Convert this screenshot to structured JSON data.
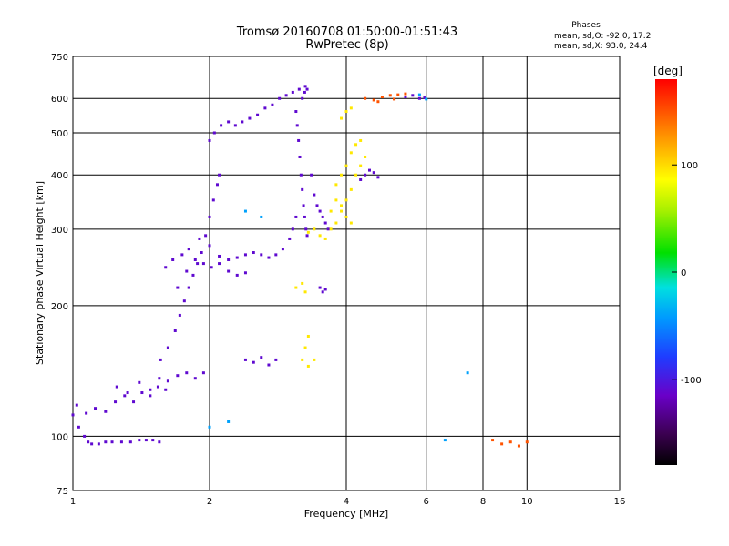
{
  "chart_data": {
    "type": "scatter",
    "title": "Tromsø 20160708 01:50:00-01:51:43",
    "subtitle": "RwPretec (8p)",
    "xlabel": "Frequency [MHz]",
    "ylabel": "Stationary phase Virtual Height [km]",
    "xscale": "log",
    "yscale": "log",
    "xlim": [
      1,
      16
    ],
    "ylim": [
      75,
      750
    ],
    "x_ticks": [
      1,
      2,
      4,
      6,
      8,
      10,
      16
    ],
    "x_tick_labels": [
      "1",
      "2",
      "4",
      "6",
      "8",
      "10",
      "16"
    ],
    "x_grid": [
      2,
      4,
      6,
      8,
      10
    ],
    "y_ticks": [
      75,
      100,
      200,
      300,
      400,
      500,
      600,
      750
    ],
    "y_tick_labels": [
      "75",
      "100",
      "200",
      "300",
      "400",
      "500",
      "600",
      "750"
    ],
    "y_grid": [
      100,
      200,
      300,
      400,
      500,
      600
    ],
    "grid": true,
    "stats": {
      "heading": "Phases",
      "o_line": "mean, sd,O: -92.0, 17.2",
      "x_line": "mean, sd,X:  93.0, 24.4"
    },
    "colorbar": {
      "label": "[deg]",
      "range": [
        -180,
        180
      ],
      "ticks": [
        -100,
        0,
        100
      ],
      "tick_labels": [
        "-100",
        "0",
        "100"
      ],
      "colormap": "rainbow (black → purple → blue → cyan → green → yellow → orange → red)"
    },
    "series": [
      {
        "phase_deg": -110,
        "note": "O-mode traces (blue)",
        "points": [
          [
            1.0,
            112
          ],
          [
            1.03,
            105
          ],
          [
            1.06,
            100
          ],
          [
            1.08,
            97
          ],
          [
            1.1,
            96
          ],
          [
            1.14,
            96
          ],
          [
            1.18,
            97
          ],
          [
            1.22,
            97
          ],
          [
            1.28,
            97
          ],
          [
            1.34,
            97
          ],
          [
            1.4,
            98
          ],
          [
            1.45,
            98
          ],
          [
            1.5,
            98
          ],
          [
            1.55,
            97
          ],
          [
            1.02,
            118
          ],
          [
            1.07,
            113
          ],
          [
            1.12,
            116
          ],
          [
            1.18,
            114
          ],
          [
            1.24,
            120
          ],
          [
            1.3,
            124
          ],
          [
            1.36,
            120
          ],
          [
            1.42,
            126
          ],
          [
            1.48,
            124
          ],
          [
            1.54,
            130
          ],
          [
            1.6,
            128
          ],
          [
            1.25,
            130
          ],
          [
            1.32,
            126
          ],
          [
            1.4,
            133
          ],
          [
            1.48,
            128
          ],
          [
            1.55,
            136
          ],
          [
            1.62,
            134
          ],
          [
            1.7,
            138
          ],
          [
            1.78,
            140
          ],
          [
            1.86,
            136
          ],
          [
            1.94,
            140
          ],
          [
            1.56,
            150
          ],
          [
            1.62,
            160
          ],
          [
            1.68,
            175
          ],
          [
            1.72,
            190
          ],
          [
            1.76,
            205
          ],
          [
            1.8,
            220
          ],
          [
            1.84,
            235
          ],
          [
            1.88,
            250
          ],
          [
            1.92,
            265
          ],
          [
            1.96,
            290
          ],
          [
            2.0,
            320
          ],
          [
            2.04,
            350
          ],
          [
            2.08,
            380
          ],
          [
            2.1,
            400
          ],
          [
            1.7,
            220
          ],
          [
            1.78,
            240
          ],
          [
            1.86,
            255
          ],
          [
            1.94,
            250
          ],
          [
            2.02,
            245
          ],
          [
            2.1,
            250
          ],
          [
            2.2,
            255
          ],
          [
            2.3,
            258
          ],
          [
            2.4,
            262
          ],
          [
            2.5,
            265
          ],
          [
            2.6,
            262
          ],
          [
            2.7,
            258
          ],
          [
            2.8,
            262
          ],
          [
            2.9,
            270
          ],
          [
            3.0,
            285
          ],
          [
            3.05,
            300
          ],
          [
            3.1,
            320
          ],
          [
            1.8,
            270
          ],
          [
            1.9,
            285
          ],
          [
            2.0,
            275
          ],
          [
            2.1,
            260
          ],
          [
            2.2,
            240
          ],
          [
            2.3,
            235
          ],
          [
            2.4,
            238
          ],
          [
            1.6,
            245
          ],
          [
            1.66,
            255
          ],
          [
            1.74,
            262
          ],
          [
            2.0,
            480
          ],
          [
            2.05,
            500
          ],
          [
            2.12,
            520
          ],
          [
            2.2,
            530
          ],
          [
            2.28,
            520
          ],
          [
            2.36,
            530
          ],
          [
            2.45,
            540
          ],
          [
            2.55,
            550
          ],
          [
            2.65,
            570
          ],
          [
            2.75,
            580
          ],
          [
            2.85,
            600
          ],
          [
            2.95,
            610
          ],
          [
            3.05,
            620
          ],
          [
            3.15,
            630
          ],
          [
            3.25,
            640
          ],
          [
            3.1,
            560
          ],
          [
            3.12,
            520
          ],
          [
            3.14,
            480
          ],
          [
            3.16,
            440
          ],
          [
            3.18,
            400
          ],
          [
            3.2,
            370
          ],
          [
            3.22,
            340
          ],
          [
            3.24,
            320
          ],
          [
            3.26,
            300
          ],
          [
            3.28,
            290
          ],
          [
            3.2,
            600
          ],
          [
            3.24,
            620
          ],
          [
            3.28,
            630
          ],
          [
            3.35,
            400
          ],
          [
            3.4,
            360
          ],
          [
            3.45,
            340
          ],
          [
            3.5,
            330
          ],
          [
            3.55,
            320
          ],
          [
            3.6,
            310
          ],
          [
            3.65,
            300
          ],
          [
            4.3,
            390
          ],
          [
            4.4,
            400
          ],
          [
            4.5,
            410
          ],
          [
            4.6,
            405
          ],
          [
            4.7,
            395
          ],
          [
            5.4,
            605
          ],
          [
            5.6,
            610
          ],
          [
            5.8,
            600
          ],
          [
            5.95,
            602
          ],
          [
            3.5,
            220
          ],
          [
            3.55,
            215
          ],
          [
            3.6,
            218
          ],
          [
            2.4,
            150
          ],
          [
            2.5,
            148
          ],
          [
            2.6,
            152
          ],
          [
            2.7,
            146
          ],
          [
            2.8,
            150
          ]
        ]
      },
      {
        "phase_deg": 95,
        "note": "X-mode traces (yellow)",
        "points": [
          [
            3.3,
            295
          ],
          [
            3.4,
            300
          ],
          [
            3.5,
            290
          ],
          [
            3.6,
            285
          ],
          [
            3.7,
            300
          ],
          [
            3.8,
            310
          ],
          [
            3.9,
            330
          ],
          [
            4.0,
            350
          ],
          [
            4.1,
            370
          ],
          [
            4.2,
            400
          ],
          [
            4.3,
            420
          ],
          [
            4.4,
            440
          ],
          [
            3.8,
            380
          ],
          [
            3.9,
            400
          ],
          [
            4.0,
            420
          ],
          [
            4.1,
            450
          ],
          [
            4.2,
            470
          ],
          [
            4.3,
            480
          ],
          [
            3.7,
            330
          ],
          [
            3.8,
            350
          ],
          [
            3.9,
            340
          ],
          [
            4.0,
            320
          ],
          [
            4.1,
            310
          ],
          [
            3.2,
            150
          ],
          [
            3.3,
            145
          ],
          [
            3.4,
            150
          ],
          [
            3.25,
            160
          ],
          [
            3.3,
            170
          ],
          [
            3.1,
            220
          ],
          [
            3.2,
            225
          ],
          [
            3.25,
            215
          ],
          [
            3.9,
            540
          ],
          [
            4.0,
            560
          ],
          [
            4.1,
            570
          ]
        ]
      },
      {
        "phase_deg": 150,
        "note": "X-mode F2 cusp (orange)",
        "points": [
          [
            4.4,
            600
          ],
          [
            4.6,
            595
          ],
          [
            4.8,
            605
          ],
          [
            5.0,
            610
          ],
          [
            5.2,
            612
          ],
          [
            5.4,
            615
          ],
          [
            4.7,
            590
          ],
          [
            5.1,
            598
          ],
          [
            8.4,
            98
          ],
          [
            8.8,
            96
          ],
          [
            9.2,
            97
          ],
          [
            9.6,
            95
          ],
          [
            10.0,
            97
          ]
        ]
      },
      {
        "phase_deg": -40,
        "note": "scattered (cyan)",
        "points": [
          [
            2.0,
            105
          ],
          [
            2.2,
            108
          ],
          [
            2.6,
            320
          ],
          [
            2.4,
            330
          ],
          [
            5.8,
            612
          ],
          [
            6.0,
            598
          ],
          [
            6.6,
            98
          ],
          [
            7.4,
            140
          ]
        ]
      }
    ]
  }
}
